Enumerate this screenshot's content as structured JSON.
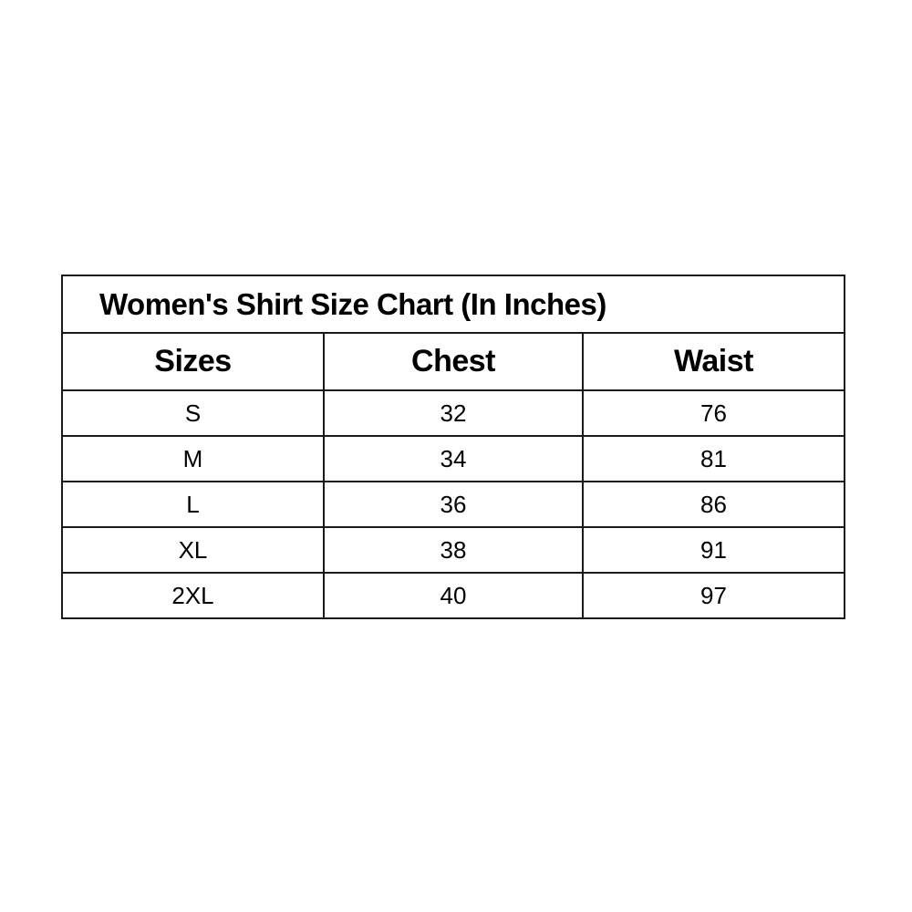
{
  "title": "Women's Shirt Size Chart (In Inches)",
  "columns": [
    "Sizes",
    "Chest",
    "Waist"
  ],
  "rows": [
    [
      "S",
      "32",
      "76"
    ],
    [
      "M",
      "34",
      "81"
    ],
    [
      "L",
      "36",
      "86"
    ],
    [
      "XL",
      "38",
      "91"
    ],
    [
      "2XL",
      "40",
      "97"
    ]
  ]
}
